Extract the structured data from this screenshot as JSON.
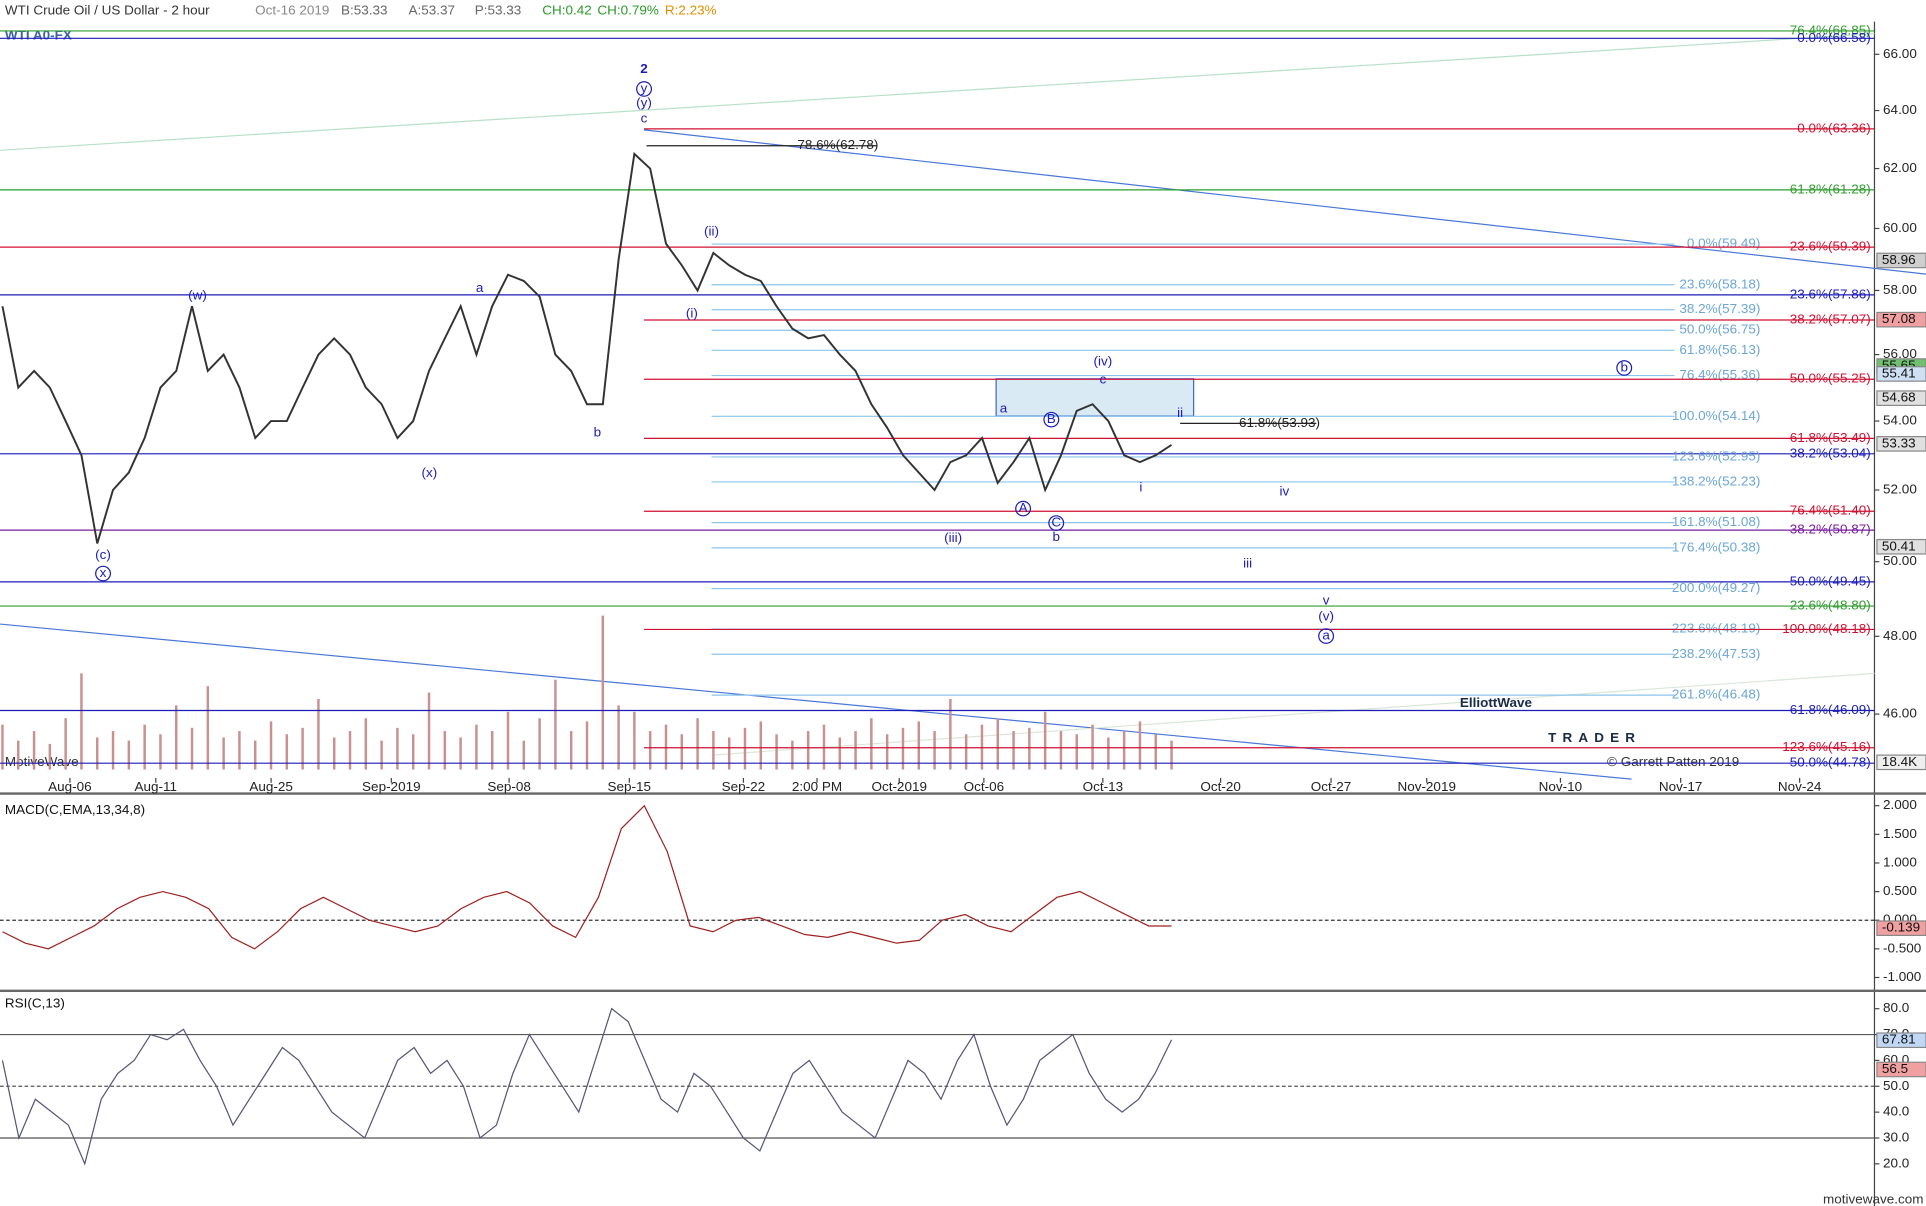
{
  "header": {
    "instrument": "WTI Crude Oil / US Dollar - 2 hour",
    "date": "Oct-16 2019",
    "bid": "B:53.33",
    "ask": "A:53.37",
    "price": "P:53.33",
    "change": "CH:0.42",
    "change_pct": "CH:0.79%",
    "range": "R:2.23%",
    "symbol": "WTI A0-FX"
  },
  "watermark": {
    "left": "MotiveWave",
    "copyright": "© Garrett Patten 2019",
    "logo_top": "ElliottWave",
    "logo_bottom": "TRADER",
    "site": "motivewave.com"
  },
  "chart_data": [
    {
      "type": "price",
      "log": true,
      "color": "#333333",
      "ylim": [
        44.42,
        67.19
      ],
      "yticks": [
        {
          "value": 46,
          "label": "46.00"
        },
        {
          "value": 48,
          "label": "48.00"
        },
        {
          "value": 50,
          "label": "50.00"
        },
        {
          "value": 52,
          "label": "52.00"
        },
        {
          "value": 54,
          "label": "54.00"
        },
        {
          "value": 56,
          "label": "56.00"
        },
        {
          "value": 58,
          "label": "58.00"
        },
        {
          "value": 60,
          "label": "60.00"
        },
        {
          "value": 62,
          "label": "62.00"
        },
        {
          "value": 64,
          "label": "64.00"
        },
        {
          "value": 66,
          "label": "66.00"
        }
      ],
      "x_labels": [
        "Aug-06",
        "Aug-11",
        "Aug-25",
        "Sep-2019",
        "Sep-08",
        "Sep-15",
        "Sep-22",
        "2:00 PM",
        "Oct-2019",
        "Oct-06",
        "Oct-13",
        "Oct-20",
        "Oct-27",
        "Nov-2019",
        "Nov-10",
        "Nov-17",
        "Nov-24"
      ],
      "values": [
        57.5,
        55,
        55.5,
        55,
        54,
        53,
        50.5,
        52,
        52.5,
        53.5,
        55,
        55.5,
        57.5,
        55.5,
        56,
        55,
        53.5,
        54,
        54,
        55,
        56,
        56.5,
        56,
        55,
        54.5,
        53.5,
        54,
        55.5,
        56.5,
        57.5,
        56,
        57.5,
        58.5,
        58.3,
        57.8,
        56,
        55.5,
        54.5,
        54.5,
        59,
        62.5,
        62,
        59.5,
        58.8,
        58,
        59.2,
        58.8,
        58.5,
        58.3,
        57.5,
        56.8,
        56.5,
        56.6,
        56,
        55.5,
        54.5,
        53.8,
        53,
        52.5,
        52,
        52.8,
        53,
        53.5,
        52.2,
        52.8,
        53.5,
        52,
        53,
        54.3,
        54.5,
        54,
        53,
        52.8,
        53,
        53.3
      ],
      "fib_levels": [
        {
          "label": "76.4%(66.85)",
          "value": 66.85,
          "color": "#2e9e2e"
        },
        {
          "label": "0.0%(66.58)",
          "value": 66.58,
          "color": "#1c1cb8"
        },
        {
          "label": "0.0%(63.36)",
          "value": 63.36,
          "color": "#d01030"
        },
        {
          "label": "78.6%(62.78)",
          "value": 62.78,
          "color": "#222222"
        },
        {
          "label": "61.8%(61.28)",
          "value": 61.28,
          "color": "#2e9e2e"
        },
        {
          "label": "0.0%(59.49)",
          "value": 59.49,
          "color": "#8cc4ee"
        },
        {
          "label": "23.6%(59.39)",
          "value": 59.39,
          "color": "#d01030"
        },
        {
          "label": "23.6%(58.18)",
          "value": 58.18,
          "color": "#8cc4ee"
        },
        {
          "label": "23.6%(57.86)",
          "value": 57.86,
          "color": "#1c1cb8"
        },
        {
          "label": "38.2%(57.39)",
          "value": 57.39,
          "color": "#8cc4ee"
        },
        {
          "label": "38.2%(57.07)",
          "value": 57.07,
          "color": "#d01030"
        },
        {
          "label": "50.0%(56.75)",
          "value": 56.75,
          "color": "#8cc4ee"
        },
        {
          "label": "61.8%(56.13)",
          "value": 56.13,
          "color": "#8cc4ee"
        },
        {
          "label": "76.4%(55.36)",
          "value": 55.36,
          "color": "#8cc4ee"
        },
        {
          "label": "50.0%(55.25)",
          "value": 55.25,
          "color": "#d01030"
        },
        {
          "label": "100.0%(54.14)",
          "value": 54.14,
          "color": "#8cc4ee"
        },
        {
          "label": "61.8%(53.93)",
          "value": 53.93,
          "color": "#222222"
        },
        {
          "label": "61.8%(53.49)",
          "value": 53.49,
          "color": "#d01030"
        },
        {
          "label": "38.2%(53.04)",
          "value": 53.04,
          "color": "#1c1cb8"
        },
        {
          "label": "123.6%(52.95)",
          "value": 52.95,
          "color": "#8cc4ee"
        },
        {
          "label": "138.2%(52.23)",
          "value": 52.23,
          "color": "#8cc4ee"
        },
        {
          "label": "76.4%(51.40)",
          "value": 51.4,
          "color": "#d01030"
        },
        {
          "label": "161.8%(51.08)",
          "value": 51.08,
          "color": "#8cc4ee"
        },
        {
          "label": "38.2%(50.87)",
          "value": 50.87,
          "color": "#7a1ea0"
        },
        {
          "label": "176.4%(50.38)",
          "value": 50.38,
          "color": "#8cc4ee"
        },
        {
          "label": "50.0%(49.45)",
          "value": 49.45,
          "color": "#1c1cb8"
        },
        {
          "label": "200.0%(49.27)",
          "value": 49.27,
          "color": "#8cc4ee"
        },
        {
          "label": "23.6%(48.80)",
          "value": 48.8,
          "color": "#2e9e2e"
        },
        {
          "label": "223.6%(48.19)",
          "value": 48.19,
          "color": "#8cc4ee"
        },
        {
          "label": "100.0%(48.18)",
          "value": 48.18,
          "color": "#d01030"
        },
        {
          "label": "238.2%(47.53)",
          "value": 47.53,
          "color": "#8cc4ee"
        },
        {
          "label": "261.8%(46.48)",
          "value": 46.48,
          "color": "#8cc4ee"
        },
        {
          "label": "61.8%(46.09)",
          "value": 46.09,
          "color": "#1c1cb8"
        },
        {
          "label": "123.6%(45.16)",
          "value": 45.16,
          "color": "#d01030"
        },
        {
          "label": "50.0%(44.78)",
          "value": 44.78,
          "color": "#1c1cb8"
        }
      ],
      "price_tags": [
        {
          "value": 58.96,
          "color": "#cfcfcf"
        },
        {
          "value": 57.08,
          "color": "#f0a0a0"
        },
        {
          "value": 55.65,
          "color": "#70c070"
        },
        {
          "value": 55.41,
          "color": "#cfe0f5"
        },
        {
          "value": 54.68,
          "color": "#e0e0e0"
        },
        {
          "value": 53.33,
          "color": "#e0e0e0"
        },
        {
          "value": 50.41,
          "color": "#e0e0e0"
        }
      ],
      "wave_labels": [
        "2",
        "y",
        "(y)",
        "c",
        "(w)",
        "a",
        "b",
        "(x)",
        "(c)",
        "x",
        "(ii)",
        "(i)",
        "(iii)",
        "(iv)",
        "c",
        "a",
        "B",
        "A",
        "C",
        "b",
        "ii",
        "i",
        "iv",
        "iii",
        "v",
        "(v)",
        "a",
        "b"
      ],
      "volume": {
        "color": "#c89090",
        "ylim": [
          0,
          60000
        ],
        "tag": {
          "value": 18400,
          "label": "18.4K"
        },
        "values": [
          14000,
          9000,
          12000,
          8000,
          16000,
          30000,
          10000,
          12000,
          9000,
          14000,
          11000,
          20000,
          13000,
          26000,
          10000,
          12000,
          9000,
          15000,
          11000,
          13000,
          22000,
          10000,
          12000,
          16000,
          9000,
          13000,
          11000,
          24000,
          12000,
          10000,
          14000,
          12000,
          18000,
          9000,
          16000,
          28000,
          12000,
          15000,
          48000,
          20000,
          18000,
          12000,
          14000,
          11000,
          16000,
          12000,
          10000,
          13000,
          15000,
          11000,
          9000,
          12000,
          14000,
          10000,
          12000,
          16000,
          11000,
          13000,
          15000,
          12000,
          22000,
          11000,
          14000,
          16000,
          12000,
          13000,
          18000,
          12000,
          11000,
          14000,
          10000,
          12000,
          15000,
          11000,
          9000
        ]
      }
    },
    {
      "type": "line",
      "title": "MACD(C,EMA,13,34,8)",
      "color": "#a02020",
      "ylim": [
        -1.19,
        2.17
      ],
      "yticks": [
        {
          "value": -1,
          "label": "-1.000"
        },
        {
          "value": -0.5,
          "label": "-0.500"
        },
        {
          "value": 0,
          "label": "0.000"
        },
        {
          "value": 0.5,
          "label": "0.500"
        },
        {
          "value": 1,
          "label": "1.000"
        },
        {
          "value": 1.5,
          "label": "1.500"
        },
        {
          "value": 2,
          "label": "2.000"
        }
      ],
      "tag": {
        "value": -0.139,
        "color": "#f0a0a0"
      },
      "values": [
        -0.2,
        -0.4,
        -0.5,
        -0.3,
        -0.1,
        0.2,
        0.4,
        0.5,
        0.4,
        0.2,
        -0.3,
        -0.5,
        -0.2,
        0.2,
        0.4,
        0.2,
        0,
        -0.1,
        -0.2,
        -0.1,
        0.2,
        0.4,
        0.5,
        0.3,
        -0.1,
        -0.3,
        0.4,
        1.6,
        2.0,
        1.2,
        -0.1,
        -0.2,
        0,
        0.05,
        -0.1,
        -0.25,
        -0.3,
        -0.2,
        -0.3,
        -0.4,
        -0.35,
        0,
        0.1,
        -0.1,
        -0.2,
        0.1,
        0.4,
        0.5,
        0.3,
        0.1,
        -0.1,
        -0.1
      ]
    },
    {
      "type": "line",
      "title": "RSI(C,13)",
      "color": "#555577",
      "ylim": [
        3.7,
        86
      ],
      "levels": [
        30,
        50,
        70
      ],
      "yticks": [
        {
          "value": 20,
          "label": "20.0"
        },
        {
          "value": 30,
          "label": "30.0"
        },
        {
          "value": 40,
          "label": "40.0"
        },
        {
          "value": 50,
          "label": "50.0"
        },
        {
          "value": 60,
          "label": "60.0"
        },
        {
          "value": 70,
          "label": "70.0"
        },
        {
          "value": 80,
          "label": "80.0"
        }
      ],
      "tags": [
        {
          "value": 67.81,
          "color": "#c0d8f5"
        },
        {
          "value": 56.5,
          "color": "#f0a0a0"
        }
      ],
      "values": [
        60,
        30,
        45,
        40,
        35,
        20,
        45,
        55,
        60,
        70,
        68,
        72,
        60,
        50,
        35,
        45,
        55,
        65,
        60,
        50,
        40,
        35,
        30,
        45,
        60,
        65,
        55,
        60,
        50,
        30,
        35,
        55,
        70,
        60,
        50,
        40,
        60,
        80,
        75,
        60,
        45,
        40,
        55,
        50,
        40,
        30,
        25,
        40,
        55,
        60,
        50,
        40,
        35,
        30,
        45,
        60,
        55,
        45,
        60,
        70,
        50,
        35,
        45,
        60,
        65,
        70,
        55,
        45,
        40,
        45,
        55,
        68
      ]
    }
  ]
}
